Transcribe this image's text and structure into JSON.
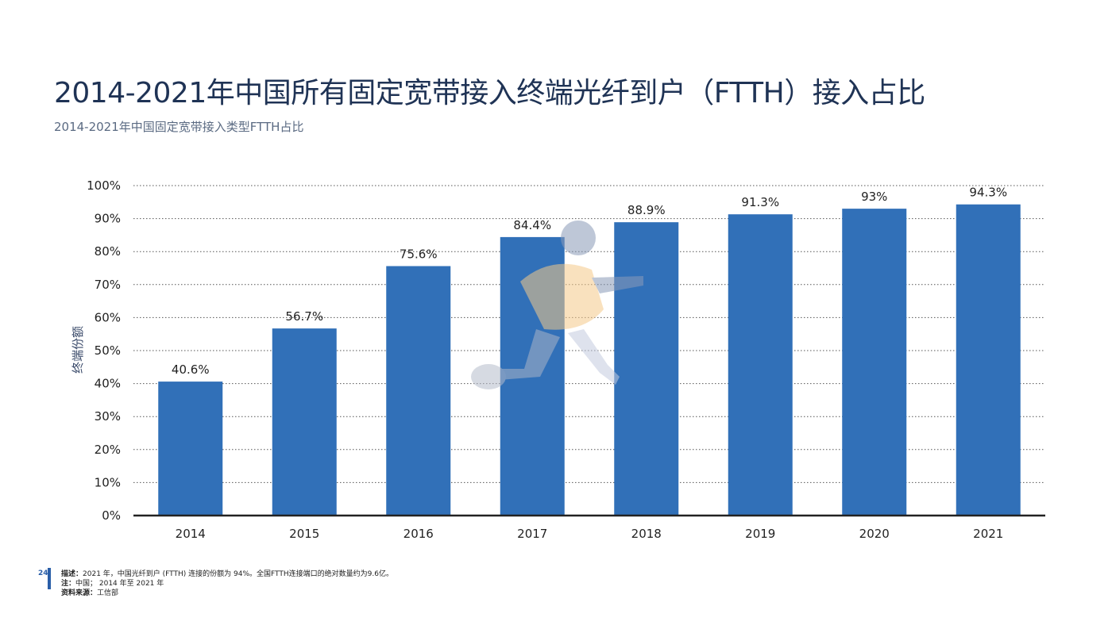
{
  "title": "2014-2021年中国所有固定宽带接入终端光纤到户（FTTH）接入占比",
  "subtitle": "2014-2021年中国固定宽带接入类型FTTH占比",
  "colors": {
    "bar": "#3170b8",
    "title": "#1f3355",
    "accent": "#2a5ea8"
  },
  "chart_data": {
    "type": "bar",
    "categories": [
      "2014",
      "2015",
      "2016",
      "2017",
      "2018",
      "2019",
      "2020",
      "2021"
    ],
    "values": [
      40.6,
      56.7,
      75.6,
      84.4,
      88.9,
      91.3,
      93,
      94.3
    ],
    "data_labels": [
      "40.6%",
      "56.7%",
      "75.6%",
      "84.4%",
      "88.9%",
      "91.3%",
      "93%",
      "94.3%"
    ],
    "ylabel": "终端份额",
    "xlabel": "",
    "ylim": [
      0,
      100
    ],
    "yticks": [
      0,
      10,
      20,
      30,
      40,
      50,
      60,
      70,
      80,
      90,
      100
    ],
    "ytick_labels": [
      "0%",
      "10%",
      "20%",
      "30%",
      "40%",
      "50%",
      "60%",
      "70%",
      "80%",
      "90%",
      "100%"
    ],
    "grid": "horizontal dotted",
    "legend": "none"
  },
  "footer": {
    "page_number": "24",
    "description_label": "描述：",
    "description_text": "2021 年，中国光纤到户 (FTTH) 连接的份额为 94%。全国FTTH连接端口的绝对数量约为9.6亿。",
    "note_label": "注：",
    "note_text": "中国； 2014 年至 2021 年",
    "source_label": "资料来源：",
    "source_text": "工信部"
  },
  "watermark_icon": "running-person-icon"
}
